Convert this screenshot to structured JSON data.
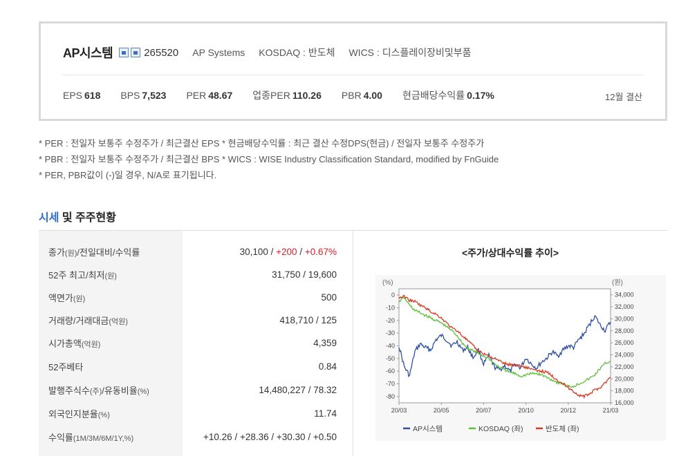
{
  "company": {
    "name": "AP시스템",
    "badge_icons": [
      "building-icon",
      "stock-icon"
    ],
    "code": "265520",
    "english_name": "AP Systems",
    "market": "KOSDAQ : 반도체",
    "wics": "WICS : 디스플레이장비및부품",
    "settlement": "12월 결산"
  },
  "stats": [
    {
      "label": "EPS",
      "value": "618"
    },
    {
      "label": "BPS",
      "value": "7,523"
    },
    {
      "label": "PER",
      "value": "48.67"
    },
    {
      "label": "업종PER",
      "value": "110.26"
    },
    {
      "label": "PBR",
      "value": "4.00"
    },
    {
      "label": "현금배당수익률",
      "value": "0.17%"
    }
  ],
  "notes": [
    "* PER : 전일자 보통주 수정주가 / 최근결산 EPS * 현금배당수익률 : 최근 결산 수정DPS(현금) / 전일자 보통주 수정주가",
    "* PBR : 전일자 보통주 수정주가 / 최근결산 BPS * WICS : WISE Industry Classification Standard, modified by FnGuide",
    "* PER, PBR값이 (-)일 경우, N/A로 표기됩니다."
  ],
  "section": {
    "accent": "시세",
    "rest": " 및 주주현황"
  },
  "table": {
    "close": {
      "label_main": "종가",
      "label_unit": "(원)",
      "label_rest": "/전일대비/수익률",
      "price": "30,100",
      "sep": " / ",
      "change": "+200",
      "rate": "+0.67%"
    },
    "rows": [
      {
        "label_main": "52주 최고/최저",
        "label_unit": "(원)",
        "value": "31,750 / 19,600"
      },
      {
        "label_main": "액면가",
        "label_unit": "(원)",
        "value": "500"
      },
      {
        "label_main": "거래량/거래대금",
        "label_unit": "(억원)",
        "value": "418,710 / 125"
      },
      {
        "label_main": "시가총액",
        "label_unit": "(억원)",
        "value": "4,359"
      },
      {
        "label_main": "52주베타",
        "label_unit": "",
        "value": "0.84"
      },
      {
        "label_main": "발행주식수",
        "label_unit": "(주)",
        "label_rest": "/유동비율",
        "label_unit2": "(%)",
        "value": "14,480,227 / 78.32"
      },
      {
        "label_main": "외국인지분율",
        "label_unit": "(%)",
        "value": "11.74"
      }
    ],
    "returns": {
      "label_main": "수익률",
      "label_unit": "(1M/3M/6M/1Y,%)",
      "values": [
        "+10.26",
        "+28.36",
        "+30.30",
        "+0.50"
      ],
      "sep": " / "
    }
  },
  "chart_data": {
    "type": "line",
    "title": "<주가/상대수익률 추이>",
    "left_unit": "(%)",
    "right_unit": "(원)",
    "x_ticks": [
      "20/03",
      "20/05",
      "20/07",
      "20/10",
      "20/12",
      "21/03"
    ],
    "y_left_ticks": [
      0,
      -10,
      -20,
      -30,
      -40,
      -50,
      -60,
      -70,
      -80
    ],
    "y_left_range": [
      -85,
      5
    ],
    "y_right_ticks": [
      34000,
      32000,
      30000,
      28000,
      26000,
      24000,
      22000,
      20000,
      18000,
      16000
    ],
    "y_right_range": [
      16000,
      35000
    ],
    "series": [
      {
        "name": "AP시스템",
        "axis": "right",
        "color": "#2d4fa3",
        "values": [
          25500,
          22000,
          20500,
          24500,
          25800,
          25200,
          24800,
          26500,
          27200,
          26500,
          25500,
          26200,
          24800,
          25200,
          23500,
          24800,
          22500,
          23800,
          22000,
          21500,
          22200,
          21200,
          22500,
          21800,
          23500,
          22500,
          21800,
          22800,
          23500,
          24500,
          23800,
          24800,
          25500,
          25200,
          26500,
          27500,
          29000,
          30500,
          29000,
          28000,
          29500
        ]
      },
      {
        "name": "KOSDAQ (좌)",
        "axis": "left",
        "color": "#5cbf3a",
        "values": [
          -5,
          -2,
          -8,
          -12,
          -14,
          -16,
          -18,
          -20,
          -22,
          -25,
          -28,
          -32,
          -38,
          -42,
          -44,
          -46,
          -48,
          -50,
          -54,
          -57,
          -59,
          -61,
          -62,
          -64,
          -63,
          -62,
          -62,
          -63,
          -65,
          -67,
          -69,
          -70,
          -72,
          -72,
          -70,
          -68,
          -66,
          -63,
          -58,
          -54,
          -52
        ]
      },
      {
        "name": "반도체 (좌)",
        "axis": "left",
        "color": "#d43a22",
        "values": [
          -2,
          -1,
          -4,
          -5,
          -8,
          -10,
          -13,
          -15,
          -18,
          -22,
          -26,
          -28,
          -32,
          -36,
          -40,
          -44,
          -46,
          -48,
          -50,
          -52,
          -54,
          -55,
          -55,
          -56,
          -57,
          -58,
          -60,
          -60,
          -61,
          -64,
          -67,
          -70,
          -73,
          -76,
          -79,
          -80,
          -78,
          -75,
          -73,
          -69,
          -65
        ]
      }
    ],
    "legend": [
      "AP시스템",
      "KOSDAQ (좌)",
      "반도체 (좌)"
    ],
    "legend_position": "bottom"
  }
}
